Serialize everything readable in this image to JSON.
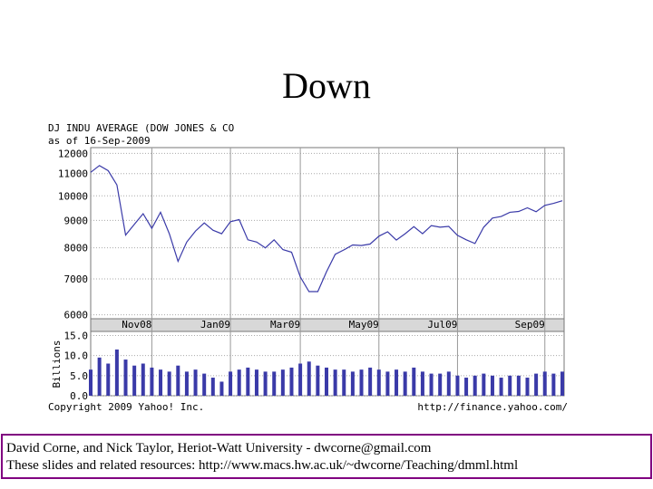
{
  "slide": {
    "title": "Down",
    "footer": [
      "David Corne, and Nick Taylor,  Heriot-Watt University  -  dwcorne@gmail.com",
      "These slides and related resources:   http://www.macs.hw.ac.uk/~dwcorne/Teaching/dmml.html"
    ]
  },
  "chart_data": [
    {
      "type": "line",
      "title": "DJ INDU AVERAGE (DOW JONES & CO",
      "subtitle": "as of 16-Sep-2009",
      "color": "#3a3aa8",
      "log_scale": true,
      "grid": true,
      "categories": [
        null,
        null,
        null,
        null,
        null,
        null,
        null,
        "Nov08",
        null,
        null,
        null,
        null,
        null,
        null,
        null,
        null,
        "Jan09",
        null,
        null,
        null,
        null,
        null,
        null,
        null,
        "Mar09",
        null,
        null,
        null,
        null,
        null,
        null,
        null,
        null,
        "May09",
        null,
        null,
        null,
        null,
        null,
        null,
        null,
        null,
        "Jul09",
        null,
        null,
        null,
        null,
        null,
        null,
        null,
        null,
        null,
        "Sep09",
        null,
        null
      ],
      "values": [
        11060,
        11390,
        11140,
        10480,
        8450,
        8850,
        9260,
        8700,
        9320,
        8500,
        7550,
        8200,
        8600,
        8900,
        8630,
        8500,
        8950,
        9030,
        8280,
        8200,
        8000,
        8280,
        7940,
        7850,
        7060,
        6630,
        6630,
        7220,
        7780,
        7930,
        8100,
        8080,
        8130,
        8410,
        8570,
        8270,
        8500,
        8760,
        8500,
        8800,
        8740,
        8770,
        8440,
        8280,
        8150,
        8740,
        9090,
        9150,
        9320,
        9350,
        9500,
        9340,
        9600,
        9680,
        9790
      ],
      "ylim": [
        5900,
        12300
      ],
      "yticks": [
        6000,
        7000,
        8000,
        9000,
        10000,
        11000,
        12000
      ]
    },
    {
      "type": "bar",
      "ylabel": "Billions",
      "color": "#3a3aa8",
      "grid": true,
      "values": [
        6.5,
        9.5,
        8.0,
        11.5,
        9.0,
        7.5,
        8.0,
        7.0,
        6.5,
        6.0,
        7.5,
        6.0,
        6.5,
        5.5,
        4.5,
        3.5,
        6.0,
        6.5,
        7.0,
        6.5,
        6.0,
        6.0,
        6.5,
        7.0,
        8.0,
        8.5,
        7.5,
        7.0,
        6.5,
        6.5,
        6.0,
        6.5,
        7.0,
        6.5,
        6.0,
        6.5,
        6.0,
        7.0,
        6.0,
        5.5,
        5.5,
        6.0,
        5.0,
        4.5,
        5.0,
        5.5,
        5.0,
        4.5,
        5.0,
        5.0,
        4.5,
        5.5,
        6.0,
        5.5,
        6.0
      ],
      "ylim": [
        0,
        16
      ],
      "yticks": [
        {
          "value": 0,
          "label": "0.0"
        },
        {
          "value": 5,
          "label": "5.0"
        },
        {
          "value": 10,
          "label": "10.0"
        },
        {
          "value": 15,
          "label": "15.0"
        }
      ],
      "annotations": [
        "Copyright 2009 Yahoo! Inc.",
        "http://finance.yahoo.com/"
      ]
    }
  ]
}
